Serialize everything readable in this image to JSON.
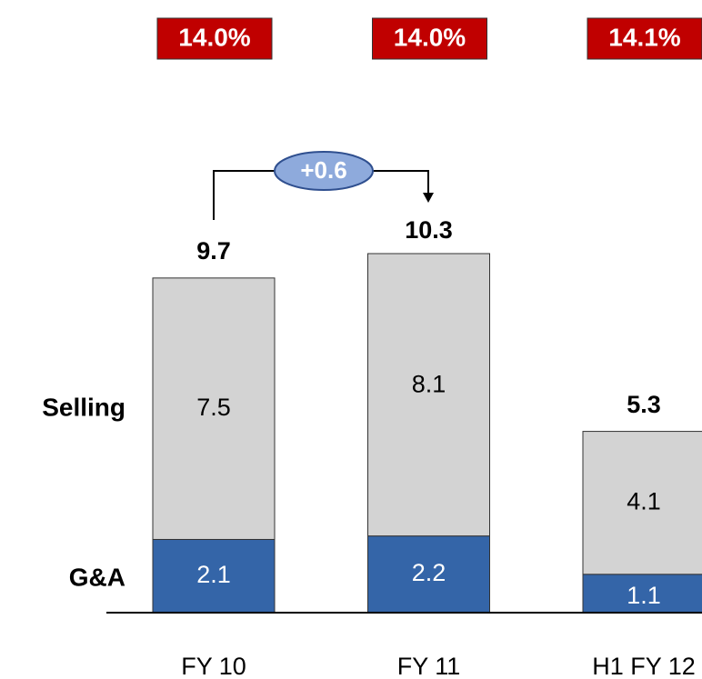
{
  "chart_data": {
    "type": "stacked_bar",
    "categories": [
      "FY 10",
      "FY 11",
      "H1 FY 12"
    ],
    "series": [
      {
        "name": "G&A",
        "color": "#3465a8",
        "label_color": "#ffffff",
        "values": [
          2.1,
          2.2,
          1.1
        ]
      },
      {
        "name": "Selling",
        "color": "#d3d3d3",
        "label_color": "#000000",
        "values": [
          7.5,
          8.1,
          4.1
        ]
      }
    ],
    "totals": [
      9.7,
      10.3,
      5.3
    ],
    "ratios": {
      "color": "#c00000",
      "values": [
        14.0,
        14.0,
        14.1
      ],
      "value_labels": [
        "14.0%",
        "14.0%",
        "14.1%"
      ]
    },
    "annotation": "+0.6"
  }
}
